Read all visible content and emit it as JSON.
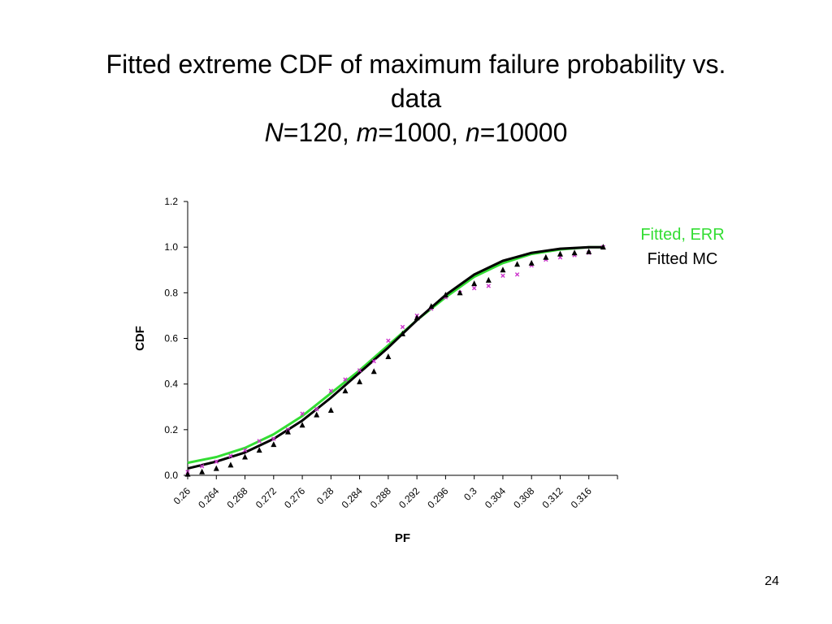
{
  "slide": {
    "title_line1": "Fitted extreme CDF of maximum failure probability vs.",
    "title_line2": "data",
    "params": [
      {
        "var": "N",
        "value": "=120, "
      },
      {
        "var": "m",
        "value": "=1000, "
      },
      {
        "var": "n",
        "value": "=10000"
      }
    ],
    "page_number": "24"
  },
  "chart_data": {
    "type": "scatter",
    "xlabel": "PF",
    "ylabel": "CDF",
    "xlim": [
      0.26,
      0.32
    ],
    "ylim": [
      0.0,
      1.2
    ],
    "x_ticks": [
      "0.26",
      "0.264",
      "0.268",
      "0.272",
      "0.276",
      "0.28",
      "0.284",
      "0.288",
      "0.292",
      "0.296",
      "0.3",
      "0.304",
      "0.308",
      "0.312",
      "0.316"
    ],
    "y_ticks": [
      "0.0",
      "0.2",
      "0.4",
      "0.6",
      "0.8",
      "1.0",
      "1.2"
    ],
    "legend_placement": "right",
    "grid": false,
    "colors": {
      "fitted_err": "#33dd33",
      "fitted_mc": "#000000",
      "err_points": "#cc33cc",
      "mc_points": "#000000"
    },
    "legend": {
      "fitted_err": "Fitted, ERR",
      "fitted_mc": "Fitted MC"
    },
    "series": [
      {
        "name": "Fitted, ERR",
        "kind": "line",
        "x": [
          0.26,
          0.264,
          0.268,
          0.272,
          0.276,
          0.28,
          0.284,
          0.288,
          0.292,
          0.296,
          0.3,
          0.304,
          0.308,
          0.312,
          0.316,
          0.318
        ],
        "y": [
          0.055,
          0.08,
          0.12,
          0.18,
          0.26,
          0.36,
          0.46,
          0.57,
          0.68,
          0.78,
          0.87,
          0.93,
          0.97,
          0.99,
          1.0,
          1.0
        ]
      },
      {
        "name": "Fitted MC",
        "kind": "line",
        "x": [
          0.26,
          0.264,
          0.268,
          0.272,
          0.276,
          0.28,
          0.284,
          0.288,
          0.292,
          0.296,
          0.3,
          0.304,
          0.308,
          0.312,
          0.316,
          0.318
        ],
        "y": [
          0.03,
          0.06,
          0.1,
          0.16,
          0.24,
          0.34,
          0.45,
          0.56,
          0.68,
          0.79,
          0.88,
          0.94,
          0.975,
          0.993,
          1.0,
          1.0
        ]
      },
      {
        "kind": "points",
        "marker": "x",
        "x": [
          0.26,
          0.262,
          0.264,
          0.266,
          0.268,
          0.27,
          0.272,
          0.274,
          0.276,
          0.278,
          0.28,
          0.282,
          0.284,
          0.286,
          0.288,
          0.29,
          0.292,
          0.294,
          0.296,
          0.298,
          0.3,
          0.302,
          0.304,
          0.306,
          0.308,
          0.31,
          0.312,
          0.314,
          0.316,
          0.318
        ],
        "y": [
          0.015,
          0.04,
          0.06,
          0.085,
          0.11,
          0.15,
          0.16,
          0.2,
          0.27,
          0.29,
          0.37,
          0.42,
          0.46,
          0.5,
          0.59,
          0.65,
          0.7,
          0.73,
          0.78,
          0.8,
          0.82,
          0.83,
          0.875,
          0.88,
          0.92,
          0.945,
          0.955,
          0.965,
          0.975,
          1.0
        ]
      },
      {
        "kind": "points",
        "marker": "triangle",
        "x": [
          0.26,
          0.262,
          0.264,
          0.266,
          0.268,
          0.27,
          0.272,
          0.274,
          0.276,
          0.278,
          0.28,
          0.282,
          0.284,
          0.286,
          0.288,
          0.29,
          0.292,
          0.294,
          0.296,
          0.298,
          0.3,
          0.302,
          0.304,
          0.306,
          0.308,
          0.31,
          0.312,
          0.314,
          0.316,
          0.318
        ],
        "y": [
          0.005,
          0.015,
          0.03,
          0.045,
          0.08,
          0.11,
          0.135,
          0.19,
          0.22,
          0.265,
          0.285,
          0.37,
          0.41,
          0.455,
          0.52,
          0.62,
          0.69,
          0.74,
          0.79,
          0.8,
          0.84,
          0.855,
          0.9,
          0.925,
          0.93,
          0.955,
          0.97,
          0.975,
          0.98,
          1.0
        ]
      }
    ]
  }
}
